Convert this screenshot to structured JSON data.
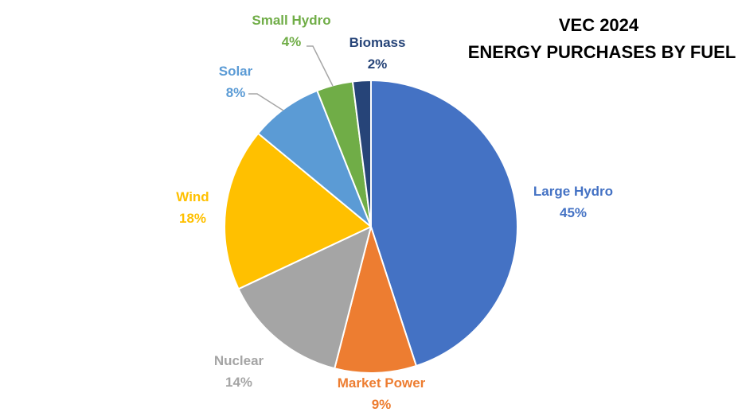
{
  "chart_data": {
    "type": "pie",
    "title": [
      "VEC 2024",
      "ENERGY PURCHASES BY FUEL"
    ],
    "legend": "none",
    "start_angle_deg": 0,
    "direction": "clockwise",
    "slices": [
      {
        "label": "Large Hydro",
        "value": 45,
        "value_label": "45%",
        "color": "#4472C4",
        "label_color": "#4472C4"
      },
      {
        "label": "Market Power",
        "value": 9,
        "value_label": "9%",
        "color": "#ED7D31",
        "label_color": "#ED7D31"
      },
      {
        "label": "Nuclear",
        "value": 14,
        "value_label": "14%",
        "color": "#A5A5A5",
        "label_color": "#A5A5A5"
      },
      {
        "label": "Wind",
        "value": 18,
        "value_label": "18%",
        "color": "#FFC000",
        "label_color": "#FFC000"
      },
      {
        "label": "Solar",
        "value": 8,
        "value_label": "8%",
        "color": "#5B9BD5",
        "label_color": "#5B9BD5"
      },
      {
        "label": "Small Hydro",
        "value": 4,
        "value_label": "4%",
        "color": "#70AD47",
        "label_color": "#70AD47"
      },
      {
        "label": "Biomass",
        "value": 2,
        "value_label": "2%",
        "color": "#264478",
        "label_color": "#264478"
      }
    ]
  }
}
